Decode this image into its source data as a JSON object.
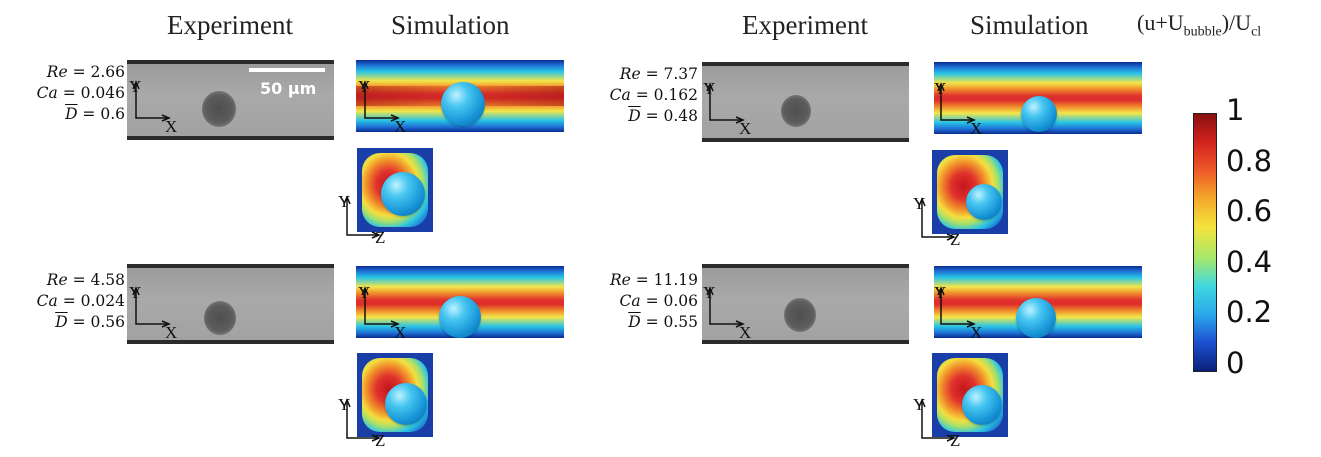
{
  "headers": {
    "experiment": "Experiment",
    "simulation": "Simulation"
  },
  "colorbar": {
    "title_main": "(u+U",
    "title_sub1": "bubble",
    "title_mid": ")/U",
    "title_sub2": "cl",
    "ticks": [
      "1",
      "0.8",
      "0.6",
      "0.4",
      "0.2",
      "0"
    ],
    "colors": [
      "#0a1f7a",
      "#1d4fd0",
      "#2aa8ea",
      "#3fd8e0",
      "#a6e86a",
      "#f4e33c",
      "#f5a92b",
      "#ee5a28",
      "#d3231f",
      "#8a1010"
    ]
  },
  "scale_bar": {
    "label": "50 μm"
  },
  "axes": {
    "x": "X",
    "y": "Y",
    "z": "Z"
  },
  "cases": [
    {
      "re_label": "Re",
      "re": "2.66",
      "ca_label": "Ca",
      "ca": "0.046",
      "d_label": "D",
      "d": "0.6"
    },
    {
      "re_label": "Re",
      "re": "7.37",
      "ca_label": "Ca",
      "ca": "0.162",
      "d_label": "D",
      "d": "0.48"
    },
    {
      "re_label": "Re",
      "re": "4.58",
      "ca_label": "Ca",
      "ca": "0.024",
      "d_label": "D",
      "d": "0.56"
    },
    {
      "re_label": "Re",
      "re": "11.19",
      "ca_label": "Ca",
      "ca": "0.06",
      "d_label": "D",
      "d": "0.55"
    }
  ]
}
